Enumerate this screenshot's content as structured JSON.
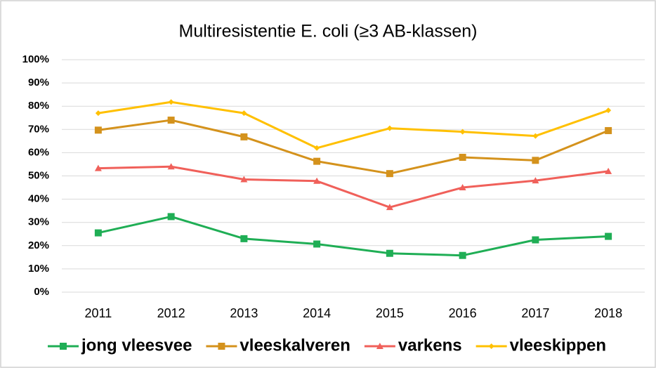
{
  "chart_data": {
    "type": "line",
    "title": "Multiresistentie E. coli (≥3 AB-klassen)",
    "categories": [
      "2011",
      "2012",
      "2013",
      "2014",
      "2015",
      "2016",
      "2017",
      "2018"
    ],
    "series": [
      {
        "name": "jong vleesvee",
        "color": "#1fae55",
        "marker": "square",
        "values": [
          25.5,
          32.5,
          23,
          20.7,
          16.7,
          15.8,
          22.5,
          24
        ]
      },
      {
        "name": "vleeskalveren",
        "color": "#d4921c",
        "marker": "square",
        "values": [
          69.7,
          74,
          66.8,
          56.3,
          51,
          58,
          56.7,
          69.5
        ]
      },
      {
        "name": "varkens",
        "color": "#f0605a",
        "marker": "triangle",
        "values": [
          53.3,
          54,
          48.5,
          47.8,
          36.5,
          45,
          48,
          52
        ]
      },
      {
        "name": "vleeskippen",
        "color": "#ffc000",
        "marker": "diamond",
        "values": [
          77,
          81.8,
          77,
          62,
          70.5,
          69,
          67.2,
          78.2
        ]
      }
    ],
    "ylim": [
      0,
      100
    ],
    "yticks": [
      {
        "value": 0,
        "label": "0%"
      },
      {
        "value": 10,
        "label": "10%"
      },
      {
        "value": 20,
        "label": "20%"
      },
      {
        "value": 30,
        "label": "30%"
      },
      {
        "value": 40,
        "label": "40%"
      },
      {
        "value": 50,
        "label": "50%"
      },
      {
        "value": 60,
        "label": "60%"
      },
      {
        "value": 70,
        "label": "70%"
      },
      {
        "value": 80,
        "label": "80%"
      },
      {
        "value": 90,
        "label": "90%"
      },
      {
        "value": 100,
        "label": "100%"
      }
    ],
    "grid": true,
    "legend": "bottom"
  }
}
